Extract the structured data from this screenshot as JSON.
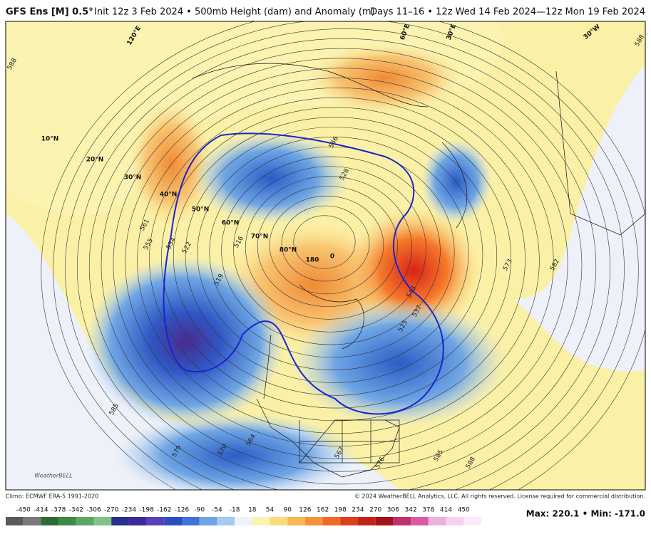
{
  "header": {
    "model": "GFS Ens [M] 0.5°",
    "title": "Init 12z 3 Feb 2024 • 500mb Height (dam) and Anomaly (m)",
    "valid": "Days 11–16 • 12z Wed 14 Feb 2024—12z Mon 19 Feb 2024"
  },
  "map": {
    "lat_labels": [
      "10°N",
      "20°N",
      "30°N",
      "40°N",
      "50°N",
      "60°N",
      "70°N",
      "80°N"
    ],
    "lon_labels": [
      "120°E",
      "60°E",
      "30°E",
      "30°W",
      "180",
      "0"
    ],
    "contour_labels": [
      "588",
      "561",
      "555",
      "534",
      "522",
      "519",
      "516",
      "546",
      "528",
      "543",
      "537",
      "525",
      "573",
      "582",
      "585",
      "579",
      "570",
      "564",
      "567",
      "576",
      "585",
      "588",
      "588"
    ],
    "watermark": "WeatherBELL"
  },
  "footer": {
    "climo": "Climo: ECMWF ERA-5 1991-2020",
    "copyright": "© 2024 WeatherBELL Analytics, LLC. All rights reserved. License required for commercial distribution.",
    "maxmin": "Max: 220.1 • Min: -171.0"
  },
  "colorbar": {
    "ticks": [
      "-450",
      "-414",
      "-378",
      "-342",
      "-306",
      "-270",
      "-234",
      "-198",
      "-162",
      "-126",
      "-90",
      "-54",
      "-18",
      "18",
      "54",
      "90",
      "126",
      "162",
      "198",
      "234",
      "270",
      "306",
      "342",
      "378",
      "414",
      "450"
    ]
  }
}
